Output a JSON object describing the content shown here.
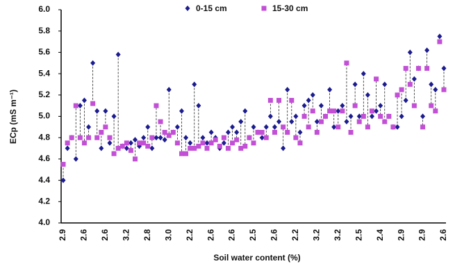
{
  "chart_data": {
    "type": "scatter",
    "xlabel": "Soil water content (%)",
    "ylabel": "ECp (mS m⁻¹)",
    "categories": [
      "2.9",
      null,
      null,
      null,
      null,
      "2.6",
      null,
      null,
      null,
      null,
      "2.6",
      null,
      null,
      null,
      null,
      "3.2",
      null,
      null,
      null,
      null,
      "2.8",
      null,
      null,
      null,
      null,
      "3.0",
      null,
      null,
      null,
      null,
      "2.2",
      null,
      null,
      null,
      null,
      "2.6",
      null,
      null,
      null,
      null,
      "2.6",
      null,
      null,
      null,
      null,
      "2.5",
      null,
      null,
      null,
      null,
      "2.6",
      null,
      null,
      null,
      null,
      "2.2",
      null,
      null,
      null,
      null,
      "3.2",
      null,
      null,
      null,
      null,
      "3.2",
      null,
      null,
      null,
      null,
      "2.5",
      null,
      null,
      null,
      null,
      "2.4",
      null,
      null,
      null,
      null,
      "2.9",
      null,
      null,
      null,
      null,
      "2.9",
      null,
      null,
      null,
      null,
      "2.6"
    ],
    "series": [
      {
        "name": "0-15 cm",
        "color": "#1c1c8f",
        "marker": "diamond",
        "values": [
          4.4,
          4.7,
          4.8,
          4.6,
          5.1,
          5.15,
          4.9,
          5.5,
          5.05,
          4.7,
          5.05,
          4.75,
          5.0,
          5.58,
          4.72,
          4.7,
          4.75,
          4.78,
          4.72,
          4.8,
          4.9,
          4.7,
          4.8,
          4.8,
          4.78,
          5.25,
          4.85,
          4.9,
          5.05,
          4.8,
          4.75,
          5.3,
          5.1,
          4.8,
          4.75,
          4.85,
          4.8,
          4.7,
          4.75,
          4.85,
          4.9,
          4.85,
          4.95,
          5.05,
          4.8,
          4.9,
          4.85,
          4.8,
          4.9,
          5.0,
          4.9,
          4.95,
          4.7,
          5.25,
          4.95,
          5.0,
          4.85,
          5.1,
          5.15,
          5.2,
          4.95,
          5.1,
          5.0,
          5.25,
          4.9,
          5.05,
          5.1,
          4.95,
          5.0,
          5.3,
          5.0,
          5.4,
          5.2,
          5.0,
          5.05,
          5.1,
          5.3,
          5.0,
          4.9,
          4.9,
          5.0,
          5.15,
          5.6,
          5.35,
          5.45,
          5.0,
          5.62,
          5.3,
          5.25,
          5.75,
          5.45
        ]
      },
      {
        "name": "15-30 cm",
        "color": "#c24fd6",
        "marker": "square",
        "values": [
          4.55,
          4.75,
          4.8,
          5.1,
          4.8,
          4.75,
          4.8,
          5.12,
          4.8,
          4.85,
          4.9,
          4.8,
          4.65,
          4.7,
          4.72,
          4.75,
          4.68,
          4.6,
          4.75,
          4.75,
          4.72,
          4.8,
          5.1,
          4.95,
          4.85,
          4.82,
          4.85,
          4.75,
          4.65,
          4.65,
          4.7,
          4.7,
          4.72,
          4.75,
          4.7,
          4.75,
          4.78,
          4.72,
          4.8,
          4.7,
          4.75,
          4.78,
          4.7,
          4.72,
          4.8,
          4.75,
          4.85,
          4.85,
          4.8,
          5.15,
          4.85,
          5.15,
          4.9,
          4.85,
          5.15,
          4.8,
          4.75,
          5.0,
          4.9,
          5.05,
          4.85,
          4.95,
          5.0,
          5.05,
          5.05,
          4.9,
          5.05,
          5.5,
          4.85,
          5.1,
          4.95,
          5.0,
          4.9,
          5.05,
          5.35,
          5.0,
          4.95,
          5.0,
          4.9,
          5.2,
          5.25,
          5.45,
          5.3,
          5.1,
          5.45,
          4.9,
          5.45,
          5.1,
          5.05,
          5.7,
          5.25
        ]
      }
    ],
    "ylim": [
      4,
      6
    ],
    "yticks": [
      {
        "value": 4,
        "label": "4.0"
      },
      4.2,
      4.4,
      4.6,
      4.8,
      {
        "value": 5,
        "label": "5.0"
      },
      5.2,
      5.4,
      5.6,
      5.8,
      {
        "value": 6,
        "label": "6.0"
      }
    ],
    "legend": "top"
  }
}
